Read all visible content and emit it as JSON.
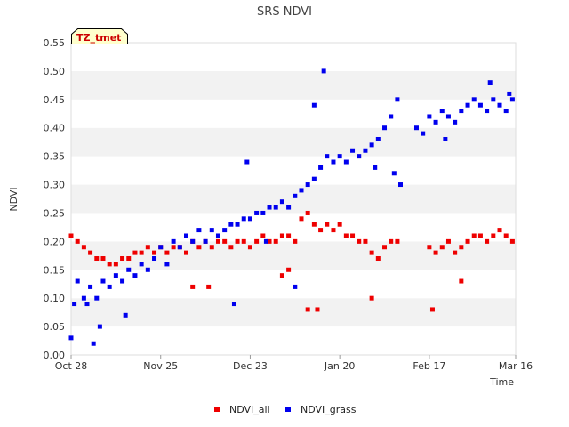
{
  "chart_data": {
    "type": "scatter",
    "title": "SRS NDVI",
    "xlabel": "Time",
    "ylabel": "NDVI",
    "ylim": [
      0.0,
      0.55
    ],
    "xlim": [
      "Oct 28",
      "Mar 16"
    ],
    "y_ticks": [
      "0.00",
      "0.05",
      "0.10",
      "0.15",
      "0.20",
      "0.25",
      "0.30",
      "0.35",
      "0.40",
      "0.45",
      "0.50",
      "0.55"
    ],
    "x_ticks": [
      "Oct 28",
      "Nov 25",
      "Dec 23",
      "Jan 20",
      "Feb 17",
      "Mar 16"
    ],
    "grid": "alternating horizontal bands",
    "legend_position": "bottom",
    "tag": "TZ_tmet",
    "series": [
      {
        "name": "NDVI_all",
        "color": "#ee0000",
        "x": [
          "Oct 28",
          "Oct 30",
          "Nov 1",
          "Nov 3",
          "Nov 5",
          "Nov 7",
          "Nov 9",
          "Nov 11",
          "Nov 13",
          "Nov 15",
          "Nov 17",
          "Nov 19",
          "Nov 21",
          "Nov 23",
          "Nov 25",
          "Nov 27",
          "Nov 29",
          "Dec 1",
          "Dec 3",
          "Dec 5",
          "Dec 7",
          "Dec 9",
          "Dec 11",
          "Dec 13",
          "Dec 15",
          "Dec 17",
          "Dec 19",
          "Dec 21",
          "Dec 23",
          "Dec 25",
          "Dec 27",
          "Dec 29",
          "Dec 31",
          "Jan 2",
          "Jan 4",
          "Jan 6",
          "Jan 8",
          "Jan 10",
          "Jan 12",
          "Jan 14",
          "Jan 16",
          "Jan 18",
          "Jan 20",
          "Jan 22",
          "Jan 24",
          "Jan 26",
          "Jan 28",
          "Jan 30",
          "Feb 1",
          "Feb 3",
          "Feb 5",
          "Feb 7",
          "Feb 17",
          "Feb 19",
          "Feb 21",
          "Feb 23",
          "Feb 25",
          "Feb 27",
          "Mar 1",
          "Mar 3",
          "Mar 5",
          "Mar 7",
          "Mar 9",
          "Mar 11",
          "Mar 13",
          "Mar 15",
          "Dec 10",
          "Jan 2",
          "Jan 10",
          "Jan 13",
          "Jan 30",
          "Feb 18",
          "Feb 27",
          "Dec 5",
          "Jan 4"
        ],
        "y": [
          0.21,
          0.2,
          0.19,
          0.18,
          0.17,
          0.17,
          0.16,
          0.16,
          0.17,
          0.17,
          0.18,
          0.18,
          0.19,
          0.18,
          0.19,
          0.18,
          0.19,
          0.19,
          0.18,
          0.2,
          0.19,
          0.2,
          0.19,
          0.2,
          0.2,
          0.19,
          0.2,
          0.2,
          0.19,
          0.2,
          0.21,
          0.2,
          0.2,
          0.21,
          0.21,
          0.2,
          0.24,
          0.25,
          0.23,
          0.22,
          0.23,
          0.22,
          0.23,
          0.21,
          0.21,
          0.2,
          0.2,
          0.18,
          0.17,
          0.19,
          0.2,
          0.2,
          0.19,
          0.18,
          0.19,
          0.2,
          0.18,
          0.19,
          0.2,
          0.21,
          0.21,
          0.2,
          0.21,
          0.22,
          0.21,
          0.2,
          0.12,
          0.14,
          0.08,
          0.08,
          0.1,
          0.08,
          0.13,
          0.12,
          0.15
        ]
      },
      {
        "name": "NDVI_grass",
        "color": "#0000ee",
        "x": [
          "Oct 28",
          "Oct 29",
          "Oct 30",
          "Nov 1",
          "Nov 2",
          "Nov 3",
          "Nov 5",
          "Nov 7",
          "Nov 9",
          "Nov 11",
          "Nov 13",
          "Nov 15",
          "Nov 17",
          "Nov 19",
          "Nov 21",
          "Nov 23",
          "Nov 25",
          "Nov 27",
          "Nov 29",
          "Dec 1",
          "Dec 3",
          "Dec 5",
          "Dec 7",
          "Dec 9",
          "Dec 11",
          "Dec 13",
          "Dec 15",
          "Dec 17",
          "Dec 19",
          "Dec 21",
          "Dec 23",
          "Dec 25",
          "Dec 27",
          "Dec 29",
          "Dec 31",
          "Jan 2",
          "Jan 4",
          "Jan 6",
          "Jan 8",
          "Jan 10",
          "Jan 12",
          "Jan 14",
          "Jan 16",
          "Jan 18",
          "Jan 20",
          "Jan 22",
          "Jan 24",
          "Jan 26",
          "Jan 28",
          "Jan 30",
          "Feb 1",
          "Feb 3",
          "Feb 5",
          "Feb 7",
          "Feb 13",
          "Feb 15",
          "Feb 17",
          "Feb 19",
          "Feb 21",
          "Feb 23",
          "Feb 25",
          "Feb 27",
          "Mar 1",
          "Mar 3",
          "Mar 5",
          "Mar 7",
          "Mar 9",
          "Mar 11",
          "Mar 13",
          "Mar 15",
          "Jan 15",
          "Jan 12",
          "Feb 6",
          "Feb 8",
          "Jan 31",
          "Feb 22",
          "Mar 8",
          "Mar 14",
          "Dec 22",
          "Dec 28",
          "Jan 6",
          "Nov 4",
          "Nov 6",
          "Nov 14",
          "Dec 18"
        ],
        "y": [
          0.03,
          0.09,
          0.13,
          0.1,
          0.09,
          0.12,
          0.1,
          0.13,
          0.12,
          0.14,
          0.13,
          0.15,
          0.14,
          0.16,
          0.15,
          0.17,
          0.19,
          0.16,
          0.2,
          0.19,
          0.21,
          0.2,
          0.22,
          0.2,
          0.22,
          0.21,
          0.22,
          0.23,
          0.23,
          0.24,
          0.24,
          0.25,
          0.25,
          0.26,
          0.26,
          0.27,
          0.26,
          0.28,
          0.29,
          0.3,
          0.31,
          0.33,
          0.35,
          0.34,
          0.35,
          0.34,
          0.36,
          0.35,
          0.36,
          0.37,
          0.38,
          0.4,
          0.42,
          0.45,
          0.4,
          0.39,
          0.42,
          0.41,
          0.43,
          0.42,
          0.41,
          0.43,
          0.44,
          0.45,
          0.44,
          0.43,
          0.45,
          0.44,
          0.43,
          0.45,
          0.5,
          0.44,
          0.32,
          0.3,
          0.33,
          0.38,
          0.48,
          0.46,
          0.34,
          0.2,
          0.12,
          0.02,
          0.05,
          0.07,
          0.09
        ]
      }
    ]
  }
}
